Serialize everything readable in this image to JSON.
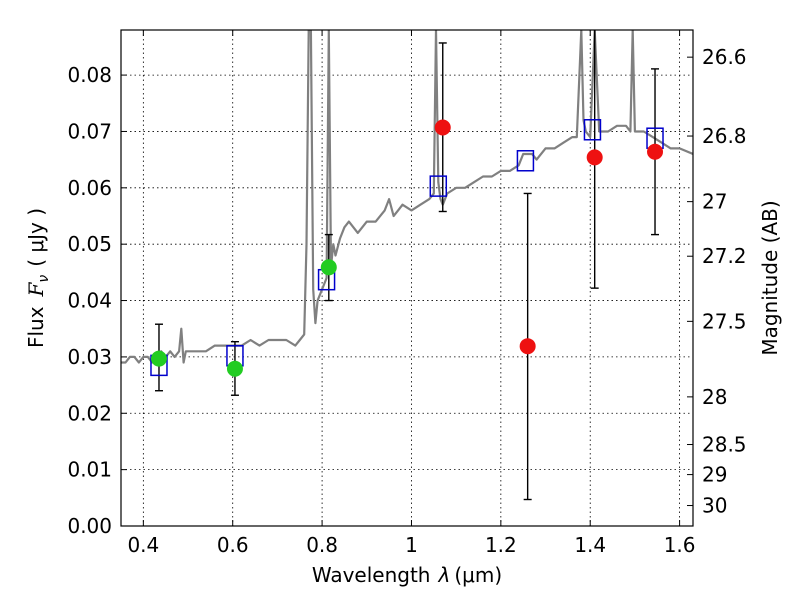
{
  "chart_data": {
    "type": "scatter",
    "title": "",
    "xlabel_text": "Wavelength",
    "xlabel_symbol": "λ",
    "xlabel_unit": "(μm)",
    "ylabel_text": "Flux",
    "ylabel_symbol": "F",
    "ylabel_subscript": "ν",
    "ylabel_unit": "( μJy )",
    "y2label": "Magnitude (AB)",
    "xlim": [
      0.35,
      1.63
    ],
    "ylim": [
      0.0,
      0.088
    ],
    "grid": true,
    "x_ticks": [
      0.4,
      0.6,
      0.8,
      1.0,
      1.2,
      1.4,
      1.6
    ],
    "x_tick_labels": [
      "0.4",
      "0.6",
      "0.8",
      "1",
      "1.2",
      "1.4",
      "1.6"
    ],
    "y_ticks": [
      0.0,
      0.01,
      0.02,
      0.03,
      0.04,
      0.05,
      0.06,
      0.07,
      0.08
    ],
    "y_tick_labels": [
      "0.00",
      "0.01",
      "0.02",
      "0.03",
      "0.04",
      "0.05",
      "0.06",
      "0.07",
      "0.08"
    ],
    "mag_ticks": [
      26.6,
      26.8,
      27,
      27.2,
      27.5,
      28,
      28.5,
      29,
      30
    ],
    "mag_tick_labels": [
      "26.6",
      "26.8",
      "27",
      "27.2",
      "27.5",
      "28",
      "28.5",
      "29",
      "30"
    ],
    "series": [
      {
        "kind": "model-spectrum",
        "color": "#808080",
        "x": [
          0.35,
          0.36,
          0.37,
          0.38,
          0.39,
          0.4,
          0.41,
          0.42,
          0.43,
          0.44,
          0.45,
          0.46,
          0.47,
          0.48,
          0.485,
          0.49,
          0.495,
          0.5,
          0.52,
          0.54,
          0.56,
          0.58,
          0.6,
          0.62,
          0.64,
          0.66,
          0.68,
          0.7,
          0.72,
          0.74,
          0.75,
          0.76,
          0.765,
          0.77,
          0.775,
          0.78,
          0.785,
          0.79,
          0.8,
          0.81,
          0.815,
          0.82,
          0.825,
          0.83,
          0.84,
          0.85,
          0.86,
          0.87,
          0.88,
          0.9,
          0.92,
          0.94,
          0.95,
          0.96,
          0.97,
          0.98,
          1.0,
          1.02,
          1.04,
          1.05,
          1.055,
          1.06,
          1.065,
          1.07,
          1.08,
          1.1,
          1.12,
          1.14,
          1.16,
          1.18,
          1.2,
          1.22,
          1.24,
          1.25,
          1.26,
          1.27,
          1.28,
          1.3,
          1.32,
          1.34,
          1.36,
          1.37,
          1.38,
          1.385,
          1.39,
          1.4,
          1.41,
          1.42,
          1.44,
          1.46,
          1.48,
          1.49,
          1.495,
          1.5,
          1.51,
          1.52,
          1.54,
          1.56,
          1.58,
          1.6,
          1.63
        ],
        "y": [
          0.029,
          0.029,
          0.03,
          0.03,
          0.029,
          0.03,
          0.03,
          0.029,
          0.03,
          0.031,
          0.03,
          0.031,
          0.03,
          0.031,
          0.035,
          0.029,
          0.031,
          0.031,
          0.031,
          0.031,
          0.032,
          0.032,
          0.032,
          0.032,
          0.033,
          0.032,
          0.033,
          0.033,
          0.033,
          0.032,
          0.033,
          0.034,
          0.05,
          0.088,
          0.088,
          0.042,
          0.036,
          0.04,
          0.042,
          0.044,
          0.088,
          0.046,
          0.05,
          0.048,
          0.051,
          0.053,
          0.054,
          0.053,
          0.052,
          0.054,
          0.054,
          0.056,
          0.058,
          0.055,
          0.056,
          0.057,
          0.056,
          0.057,
          0.058,
          0.059,
          0.088,
          0.061,
          0.058,
          0.057,
          0.059,
          0.06,
          0.06,
          0.061,
          0.062,
          0.062,
          0.063,
          0.063,
          0.064,
          0.066,
          0.066,
          0.066,
          0.065,
          0.067,
          0.067,
          0.068,
          0.069,
          0.069,
          0.088,
          0.072,
          0.07,
          0.069,
          0.088,
          0.07,
          0.07,
          0.071,
          0.071,
          0.07,
          0.088,
          0.07,
          0.07,
          0.07,
          0.069,
          0.068,
          0.067,
          0.067,
          0.066
        ]
      },
      {
        "kind": "model-photometry",
        "color": "#0000cc",
        "marker": "open-square",
        "x": [
          0.435,
          0.605,
          0.81,
          1.06,
          1.255,
          1.405,
          1.545
        ],
        "y": [
          0.0285,
          0.0302,
          0.0437,
          0.0603,
          0.0648,
          0.0703,
          0.0688
        ]
      },
      {
        "kind": "detected",
        "color": "#22cc22",
        "marker": "filled-circle",
        "x": [
          0.435,
          0.605,
          0.815
        ],
        "y": [
          0.0297,
          0.0279,
          0.0459
        ],
        "yerr_low": [
          0.024,
          0.0232,
          0.04
        ],
        "yerr_high": [
          0.0358,
          0.0327,
          0.0517
        ]
      },
      {
        "kind": "marginal",
        "color": "#ee1111",
        "marker": "filled-circle",
        "x": [
          1.07,
          1.26,
          1.41,
          1.545
        ],
        "y": [
          0.0707,
          0.0319,
          0.0654,
          0.0664
        ],
        "yerr_low": [
          0.0558,
          0.0047,
          0.0422,
          0.0517
        ],
        "yerr_high": [
          0.0857,
          0.059,
          0.088,
          0.0811
        ]
      }
    ]
  }
}
